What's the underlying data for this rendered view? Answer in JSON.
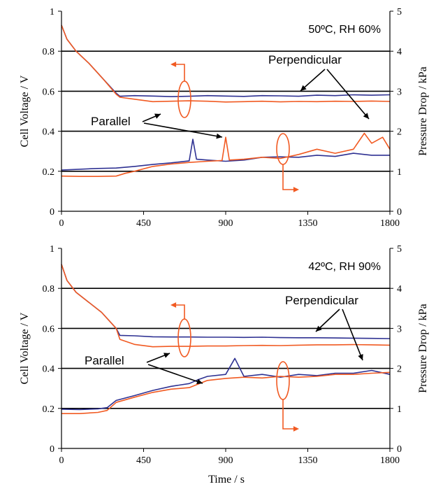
{
  "colors": {
    "perpendicular": "#2e3192",
    "parallel": "#f15a22",
    "grid": "#000000"
  },
  "chart_data": [
    {
      "type": "line",
      "condition_label": "50ºC, RH 60%",
      "xlabel": "",
      "ylabel": "Cell Voltage / V",
      "y2label": "Pressure Drop / kPa",
      "xlim": [
        0,
        1800
      ],
      "ylim": [
        0,
        1
      ],
      "y2lim": [
        0,
        5
      ],
      "x_ticks": [
        "0",
        "450",
        "900",
        "1350",
        "1800"
      ],
      "y_ticks": [
        "0",
        "0.2",
        "0.4",
        "0.6",
        "0.8",
        "1"
      ],
      "y2_ticks": [
        "0",
        "1",
        "2",
        "3",
        "4",
        "5"
      ],
      "grid": true,
      "annotations": [
        "Perpendicular",
        "Parallel"
      ],
      "series": [
        {
          "axis": "left",
          "color": "perpendicular",
          "x": [
            0,
            30,
            80,
            150,
            220,
            300,
            320,
            400,
            500,
            600,
            700,
            800,
            900,
            1000,
            1100,
            1200,
            1300,
            1400,
            1500,
            1600,
            1700,
            1800
          ],
          "y": [
            0.93,
            0.86,
            0.8,
            0.74,
            0.67,
            0.59,
            0.575,
            0.578,
            0.576,
            0.573,
            0.575,
            0.578,
            0.576,
            0.574,
            0.578,
            0.577,
            0.575,
            0.58,
            0.578,
            0.582,
            0.58,
            0.582
          ]
        },
        {
          "axis": "left",
          "color": "parallel",
          "x": [
            0,
            30,
            80,
            150,
            220,
            300,
            320,
            400,
            500,
            600,
            700,
            800,
            900,
            1000,
            1100,
            1200,
            1300,
            1400,
            1500,
            1600,
            1700,
            1800
          ],
          "y": [
            0.93,
            0.86,
            0.8,
            0.74,
            0.67,
            0.585,
            0.57,
            0.56,
            0.548,
            0.55,
            0.552,
            0.55,
            0.546,
            0.548,
            0.55,
            0.547,
            0.549,
            0.548,
            0.55,
            0.549,
            0.551,
            0.549
          ]
        },
        {
          "axis": "right",
          "color": "perpendicular",
          "x": [
            0,
            100,
            200,
            300,
            400,
            500,
            600,
            700,
            720,
            740,
            800,
            900,
            1000,
            1100,
            1200,
            1300,
            1400,
            1500,
            1600,
            1700,
            1800
          ],
          "y": [
            1.03,
            1.05,
            1.07,
            1.08,
            1.12,
            1.17,
            1.21,
            1.26,
            1.8,
            1.3,
            1.28,
            1.25,
            1.28,
            1.35,
            1.36,
            1.35,
            1.4,
            1.37,
            1.45,
            1.4,
            1.4
          ]
        },
        {
          "axis": "right",
          "color": "parallel",
          "x": [
            0,
            100,
            200,
            300,
            350,
            400,
            500,
            600,
            700,
            800,
            880,
            900,
            920,
            1000,
            1100,
            1200,
            1300,
            1400,
            1500,
            1600,
            1660,
            1700,
            1760,
            1800
          ],
          "y": [
            0.88,
            0.87,
            0.87,
            0.88,
            0.95,
            1.0,
            1.12,
            1.18,
            1.22,
            1.25,
            1.27,
            1.85,
            1.28,
            1.3,
            1.35,
            1.32,
            1.42,
            1.55,
            1.45,
            1.55,
            1.95,
            1.7,
            1.85,
            1.55
          ]
        }
      ]
    },
    {
      "type": "line",
      "condition_label": "42ºC, RH 90%",
      "xlabel": "Time / s",
      "ylabel": "Cell Voltage / V",
      "y2label": "Pressure Drop / kPa",
      "xlim": [
        0,
        1800
      ],
      "ylim": [
        0,
        1
      ],
      "y2lim": [
        0,
        5
      ],
      "x_ticks": [
        "0",
        "450",
        "900",
        "1350",
        "1800"
      ],
      "y_ticks": [
        "0",
        "0.2",
        "0.4",
        "0.6",
        "0.8",
        "1"
      ],
      "y2_ticks": [
        "0",
        "1",
        "2",
        "3",
        "4",
        "5"
      ],
      "grid": true,
      "annotations": [
        "Perpendicular",
        "Parallel"
      ],
      "series": [
        {
          "axis": "left",
          "color": "perpendicular",
          "x": [
            0,
            30,
            80,
            150,
            220,
            300,
            320,
            400,
            500,
            600,
            700,
            800,
            900,
            1000,
            1100,
            1200,
            1300,
            1400,
            1500,
            1600,
            1700,
            1800
          ],
          "y": [
            0.92,
            0.84,
            0.78,
            0.73,
            0.68,
            0.6,
            0.565,
            0.563,
            0.558,
            0.557,
            0.557,
            0.556,
            0.556,
            0.555,
            0.556,
            0.554,
            0.553,
            0.553,
            0.552,
            0.551,
            0.55,
            0.549
          ]
        },
        {
          "axis": "left",
          "color": "parallel",
          "x": [
            0,
            30,
            80,
            150,
            220,
            300,
            320,
            400,
            500,
            600,
            700,
            800,
            900,
            1000,
            1100,
            1200,
            1300,
            1400,
            1500,
            1600,
            1700,
            1800
          ],
          "y": [
            0.92,
            0.84,
            0.78,
            0.73,
            0.68,
            0.6,
            0.545,
            0.52,
            0.508,
            0.51,
            0.51,
            0.512,
            0.512,
            0.514,
            0.515,
            0.514,
            0.516,
            0.518,
            0.518,
            0.519,
            0.518,
            0.516
          ]
        },
        {
          "axis": "right",
          "color": "perpendicular",
          "x": [
            0,
            100,
            200,
            250,
            300,
            400,
            500,
            600,
            700,
            750,
            800,
            900,
            950,
            1000,
            1100,
            1200,
            1300,
            1400,
            1500,
            1600,
            1700,
            1800
          ],
          "y": [
            0.98,
            0.97,
            0.99,
            1.02,
            1.2,
            1.32,
            1.45,
            1.55,
            1.62,
            1.72,
            1.8,
            1.85,
            2.25,
            1.8,
            1.85,
            1.78,
            1.85,
            1.82,
            1.88,
            1.88,
            1.95,
            1.85
          ]
        },
        {
          "axis": "right",
          "color": "parallel",
          "x": [
            0,
            100,
            200,
            250,
            300,
            400,
            500,
            600,
            700,
            800,
            900,
            1000,
            1100,
            1200,
            1300,
            1400,
            1500,
            1600,
            1700,
            1800
          ],
          "y": [
            0.87,
            0.87,
            0.9,
            0.95,
            1.15,
            1.28,
            1.4,
            1.48,
            1.52,
            1.7,
            1.75,
            1.78,
            1.76,
            1.8,
            1.78,
            1.8,
            1.85,
            1.85,
            1.88,
            1.9
          ]
        }
      ]
    }
  ]
}
